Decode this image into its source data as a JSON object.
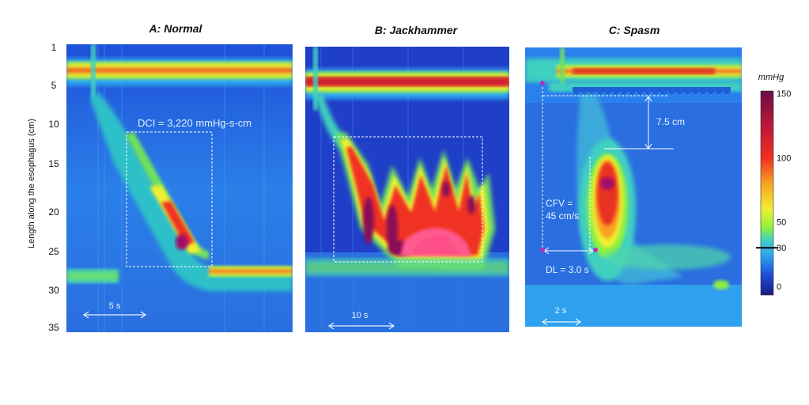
{
  "figure": {
    "y_axis_label": "Length along the esophagus (cm)",
    "y_ticks": [
      "1",
      "5",
      "10",
      "15",
      "20",
      "25",
      "30",
      "35"
    ]
  },
  "panels": [
    {
      "title": "A: Normal",
      "annotations": {
        "dci": "DCI = 3,220 mmHg-s-cm",
        "time_scale": "5 s"
      }
    },
    {
      "title": "B: Jackhammer",
      "annotations": {
        "time_scale": "10 s"
      }
    },
    {
      "title": "C: Spasm",
      "annotations": {
        "distance": "7.5 cm",
        "cfv_line1": "CFV =",
        "cfv_line2": "45 cm/s",
        "dl": "DL = 3.0 s",
        "time_scale": "2 s"
      }
    }
  ],
  "colorbar": {
    "unit": "mmHg",
    "ticks": [
      "150",
      "100",
      "50",
      "30",
      "0"
    ],
    "tick_values": [
      150,
      100,
      50,
      30,
      0
    ],
    "range": [
      0,
      150
    ],
    "colors": [
      "#1a1a80",
      "#1f4fd8",
      "#2fa8f0",
      "#3fd0c0",
      "#4fe07a",
      "#8ff040",
      "#f0f030",
      "#f8a020",
      "#f03020",
      "#c01838",
      "#7a1050"
    ]
  },
  "chart_data": {
    "type": "heatmap",
    "title": "",
    "ylabel": "Length along the esophagus (cm)",
    "ylim": [
      35,
      1
    ],
    "y_ticks": [
      1,
      5,
      10,
      15,
      20,
      25,
      30,
      35
    ],
    "colorbar_range_mmHg": [
      0,
      150
    ],
    "panels": [
      {
        "name": "A: Normal",
        "dci_mmHg_s_cm": 3220,
        "time_scale_s": 5
      },
      {
        "name": "B: Jackhammer",
        "time_scale_s": 10
      },
      {
        "name": "C: Spasm",
        "distance_cm": 7.5,
        "cfv_cm_per_s": 45,
        "dl_s": 3.0,
        "time_scale_s": 2
      }
    ]
  }
}
